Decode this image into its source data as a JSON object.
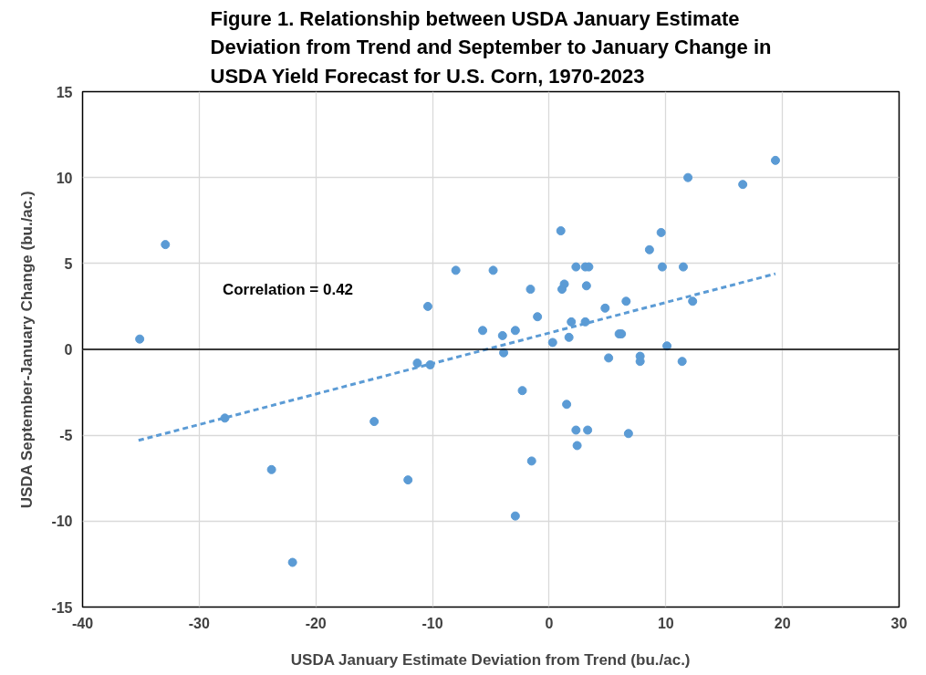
{
  "chart_data": {
    "type": "scatter",
    "title": "Figure 1. Relationship between USDA January Estimate\nDeviation from Trend and September to January Change in\nUSDA Yield Forecast for U.S. Corn, 1970-2023",
    "xlabel": "USDA January Estimate Deviation from Trend (bu./ac.)",
    "ylabel": "USDA September-January Change (bu./ac.)",
    "annotations": [
      "Correlation = 0.42"
    ],
    "xlim": [
      -40,
      30
    ],
    "xticks": [
      -40,
      -30,
      -20,
      -10,
      0,
      10,
      20,
      30
    ],
    "ylim": [
      -15,
      15
    ],
    "yticks": [
      -15,
      -10,
      -5,
      0,
      5,
      10,
      15
    ],
    "grid": true,
    "ref_lines": [
      {
        "axis": "y",
        "value": 0,
        "color": "#000000"
      }
    ],
    "series": [
      {
        "color": "#5b9bd5",
        "marker": "circle",
        "x": [
          -35.1,
          -32.9,
          -27.8,
          -23.8,
          -22.0,
          -15.0,
          -12.1,
          -11.3,
          -10.2,
          -10.4,
          -8.0,
          -4.8,
          -5.7,
          -4.0,
          -2.9,
          -3.9,
          -1.6,
          -1.0,
          -2.3,
          -1.5,
          -2.9,
          0.3,
          1.0,
          1.1,
          1.3,
          1.9,
          1.7,
          1.5,
          2.3,
          2.3,
          2.4,
          3.1,
          3.4,
          3.2,
          3.1,
          3.3,
          4.8,
          5.1,
          6.0,
          6.2,
          6.6,
          6.8,
          7.8,
          7.8,
          8.6,
          9.6,
          9.7,
          10.1,
          11.4,
          11.5,
          11.9,
          12.3,
          16.6,
          19.4
        ],
        "values": [
          0.6,
          6.1,
          -4.0,
          -7.0,
          -12.4,
          -4.2,
          -7.6,
          -0.8,
          -0.9,
          2.5,
          4.6,
          4.6,
          1.1,
          0.8,
          1.1,
          -0.2,
          3.5,
          1.9,
          -2.4,
          -6.5,
          -9.7,
          0.4,
          6.9,
          3.5,
          3.8,
          1.6,
          0.7,
          -3.2,
          4.8,
          -4.7,
          -5.6,
          4.8,
          4.8,
          3.7,
          1.6,
          -4.7,
          2.4,
          -0.5,
          0.9,
          0.9,
          2.8,
          -4.9,
          -0.4,
          -0.7,
          5.8,
          6.8,
          4.8,
          0.2,
          -0.7,
          4.8,
          10.0,
          2.8,
          9.6,
          11.0
        ]
      },
      {
        "type": "line",
        "color": "#5b9bd5",
        "marker": "none",
        "line_style": "dashed",
        "x": [
          -35.2,
          19.4
        ],
        "values": [
          -5.3,
          4.4
        ]
      }
    ]
  }
}
